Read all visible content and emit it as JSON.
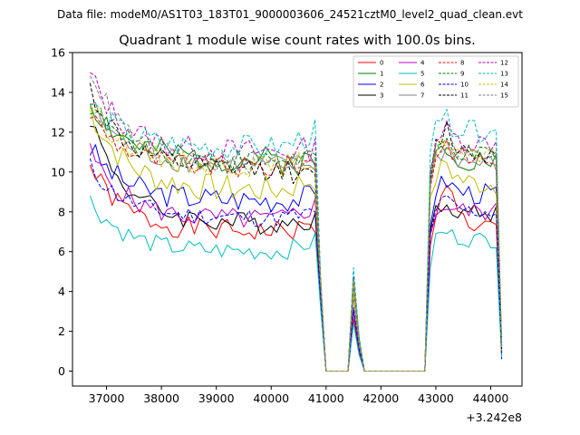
{
  "header": {
    "file_label": "Data file: modeM0/AS1T03_183T01_9000003606_24521cztM0_level2_quad_clean.evt"
  },
  "chart_data": {
    "type": "line",
    "title": "Quadrant 1 module wise count rates with 100.0s bins.",
    "xlabel": "",
    "ylabel": "",
    "x_offset_label": "+3.242e8",
    "xlim": [
      36380,
      44570
    ],
    "ylim": [
      -0.75,
      16.0
    ],
    "xticks": [
      37000,
      38000,
      39000,
      40000,
      41000,
      42000,
      43000,
      44000
    ],
    "xtick_labels": [
      "37000",
      "38000",
      "39000",
      "40000",
      "41000",
      "42000",
      "43000",
      "44000"
    ],
    "yticks": [
      0,
      2,
      4,
      6,
      8,
      10,
      12,
      14,
      16
    ],
    "ytick_labels": [
      "0",
      "2",
      "4",
      "6",
      "8",
      "10",
      "12",
      "14",
      "16"
    ],
    "legend_location": "top-right",
    "x_segments": [
      {
        "start": 36700,
        "end": 40900,
        "step": 100
      },
      {
        "start": 41000,
        "end": 42800,
        "step": 100
      },
      {
        "start": 42900,
        "end": 44200,
        "step": 100
      }
    ],
    "series": [
      {
        "name": "0",
        "color": "#ff0000",
        "dash": "solid",
        "start": 10.3,
        "plateau": 7.0,
        "pre_gap": 7.2,
        "spike": 2.6,
        "post_peak": 9.8,
        "post_level": 7.2,
        "end_value": 1.0,
        "noise": 0.35,
        "seed": 1
      },
      {
        "name": "1",
        "color": "#008000",
        "dash": "solid",
        "start": 13.6,
        "plateau": 10.6,
        "pre_gap": 10.4,
        "spike": 4.7,
        "post_peak": 11.4,
        "post_level": 10.6,
        "end_value": 1.2,
        "noise": 0.45,
        "seed": 2
      },
      {
        "name": "2",
        "color": "#0000ff",
        "dash": "solid",
        "start": 11.2,
        "plateau": 8.6,
        "pre_gap": 8.8,
        "spike": 3.8,
        "post_peak": 9.6,
        "post_level": 8.9,
        "end_value": 0.6,
        "noise": 0.4,
        "seed": 3
      },
      {
        "name": "3",
        "color": "#000000",
        "dash": "solid",
        "start": 12.8,
        "plateau": 7.4,
        "pre_gap": 7.7,
        "spike": 3.0,
        "post_peak": 8.6,
        "post_level": 7.9,
        "end_value": 0.8,
        "noise": 0.35,
        "seed": 4
      },
      {
        "name": "4",
        "color": "#c000c0",
        "dash": "solid",
        "start": 11.0,
        "plateau": 7.6,
        "pre_gap": 8.3,
        "spike": 3.1,
        "post_peak": 8.3,
        "post_level": 8.0,
        "end_value": 0.9,
        "noise": 0.35,
        "seed": 5
      },
      {
        "name": "5",
        "color": "#00bfbf",
        "dash": "solid",
        "start": 8.6,
        "plateau": 6.0,
        "pre_gap": 6.5,
        "spike": 2.4,
        "post_peak": 7.0,
        "post_level": 6.6,
        "end_value": 0.7,
        "noise": 0.3,
        "seed": 6
      },
      {
        "name": "6",
        "color": "#bfbf00",
        "dash": "solid",
        "start": 13.2,
        "plateau": 9.1,
        "pre_gap": 9.7,
        "spike": 3.9,
        "post_peak": 10.5,
        "post_level": 9.4,
        "end_value": 1.0,
        "noise": 0.45,
        "seed": 7
      },
      {
        "name": "7",
        "color": "#808080",
        "dash": "solid",
        "start": 13.5,
        "plateau": 10.3,
        "pre_gap": 10.4,
        "spike": 4.3,
        "post_peak": 11.2,
        "post_level": 10.4,
        "end_value": 1.1,
        "noise": 0.35,
        "seed": 8
      },
      {
        "name": "8",
        "color": "#ff0000",
        "dash": "dashed",
        "start": 13.0,
        "plateau": 10.2,
        "pre_gap": 10.6,
        "spike": 4.6,
        "post_peak": 11.5,
        "post_level": 10.6,
        "end_value": 1.1,
        "noise": 0.35,
        "seed": 9
      },
      {
        "name": "9",
        "color": "#008000",
        "dash": "dashed",
        "start": 13.4,
        "plateau": 10.6,
        "pre_gap": 10.9,
        "spike": 4.7,
        "post_peak": 11.5,
        "post_level": 10.8,
        "end_value": 1.2,
        "noise": 0.35,
        "seed": 10
      },
      {
        "name": "10",
        "color": "#0000ff",
        "dash": "dashed",
        "start": 10.3,
        "plateau": 7.7,
        "pre_gap": 7.9,
        "spike": 3.2,
        "post_peak": 8.6,
        "post_level": 8.0,
        "end_value": 0.9,
        "noise": 0.3,
        "seed": 11
      },
      {
        "name": "11",
        "color": "#000000",
        "dash": "dashed",
        "start": 14.2,
        "plateau": 10.1,
        "pre_gap": 9.6,
        "spike": 4.5,
        "post_peak": 12.2,
        "post_level": 10.9,
        "end_value": 1.1,
        "noise": 0.35,
        "seed": 12
      },
      {
        "name": "12",
        "color": "#c000c0",
        "dash": "dashed",
        "start": 14.9,
        "plateau": 11.0,
        "pre_gap": 11.2,
        "spike": 4.8,
        "post_peak": 12.1,
        "post_level": 11.5,
        "end_value": 1.3,
        "noise": 0.4,
        "seed": 13
      },
      {
        "name": "13",
        "color": "#00bfbf",
        "dash": "dashed",
        "start": 13.5,
        "plateau": 11.2,
        "pre_gap": 12.0,
        "spike": 5.2,
        "post_peak": 12.6,
        "post_level": 12.0,
        "end_value": 1.3,
        "noise": 0.4,
        "seed": 14
      },
      {
        "name": "14",
        "color": "#bfbf00",
        "dash": "dashed",
        "start": 13.6,
        "plateau": 10.3,
        "pre_gap": 10.6,
        "spike": 4.5,
        "post_peak": 11.6,
        "post_level": 10.7,
        "end_value": 1.2,
        "noise": 0.35,
        "seed": 15
      },
      {
        "name": "15",
        "color": "#808080",
        "dash": "dashed",
        "start": 15.3,
        "plateau": 10.4,
        "pre_gap": 10.8,
        "spike": 4.6,
        "post_peak": 11.6,
        "post_level": 10.8,
        "end_value": 1.2,
        "noise": 0.35,
        "seed": 16
      }
    ]
  }
}
